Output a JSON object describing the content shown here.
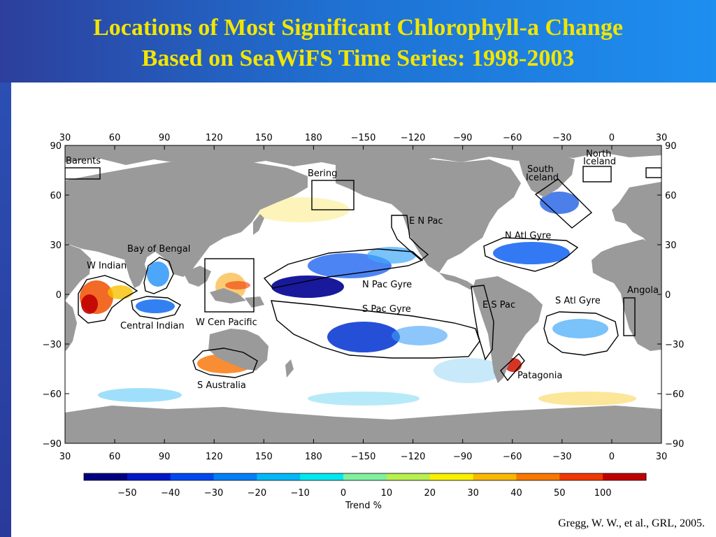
{
  "title": {
    "line1": "Locations of Most Significant Chlorophyll-a Change",
    "line2": "Based on SeaWiFS Time Series: 1998-2003"
  },
  "colors": {
    "title": "#f2e600",
    "land": "#9a9a9a",
    "ocean": "#ffffff"
  },
  "map": {
    "projection": "equirectangular",
    "lon_ticks": [
      "30",
      "60",
      "90",
      "120",
      "150",
      "180",
      "−150",
      "−120",
      "−90",
      "−60",
      "−30",
      "0",
      "30"
    ],
    "lat_ticks": [
      "90",
      "60",
      "30",
      "0",
      "−30",
      "−60",
      "−90"
    ],
    "regions": [
      {
        "label": "Barents"
      },
      {
        "label": "Bering"
      },
      {
        "label": "North Iceland"
      },
      {
        "label": "South Iceland"
      },
      {
        "label": "E N Pac"
      },
      {
        "label": "N Atl Gyre"
      },
      {
        "label": "Bay of Bengal"
      },
      {
        "label": "W Indian"
      },
      {
        "label": "N Pac Gyre"
      },
      {
        "label": "S Pac Gyre"
      },
      {
        "label": "E S Pac"
      },
      {
        "label": "S Atl Gyre"
      },
      {
        "label": "Angola"
      },
      {
        "label": "Central Indian"
      },
      {
        "label": "W Cen Pacific"
      },
      {
        "label": "S Australia"
      },
      {
        "label": "Patagonia"
      }
    ]
  },
  "colorbar": {
    "label": "Trend %",
    "tick_labels": [
      "−50",
      "−40",
      "−30",
      "−20",
      "−10",
      "0",
      "10",
      "20",
      "30",
      "40",
      "50",
      "100"
    ],
    "colors": [
      "#000080",
      "#0018c8",
      "#0048f0",
      "#0080f8",
      "#00b8f8",
      "#00e8f0",
      "#80f0a0",
      "#b8f050",
      "#f8f000",
      "#f8b800",
      "#f87800",
      "#f03800",
      "#c00000"
    ]
  },
  "citation": "Gregg, W. W., et al., GRL, 2005."
}
